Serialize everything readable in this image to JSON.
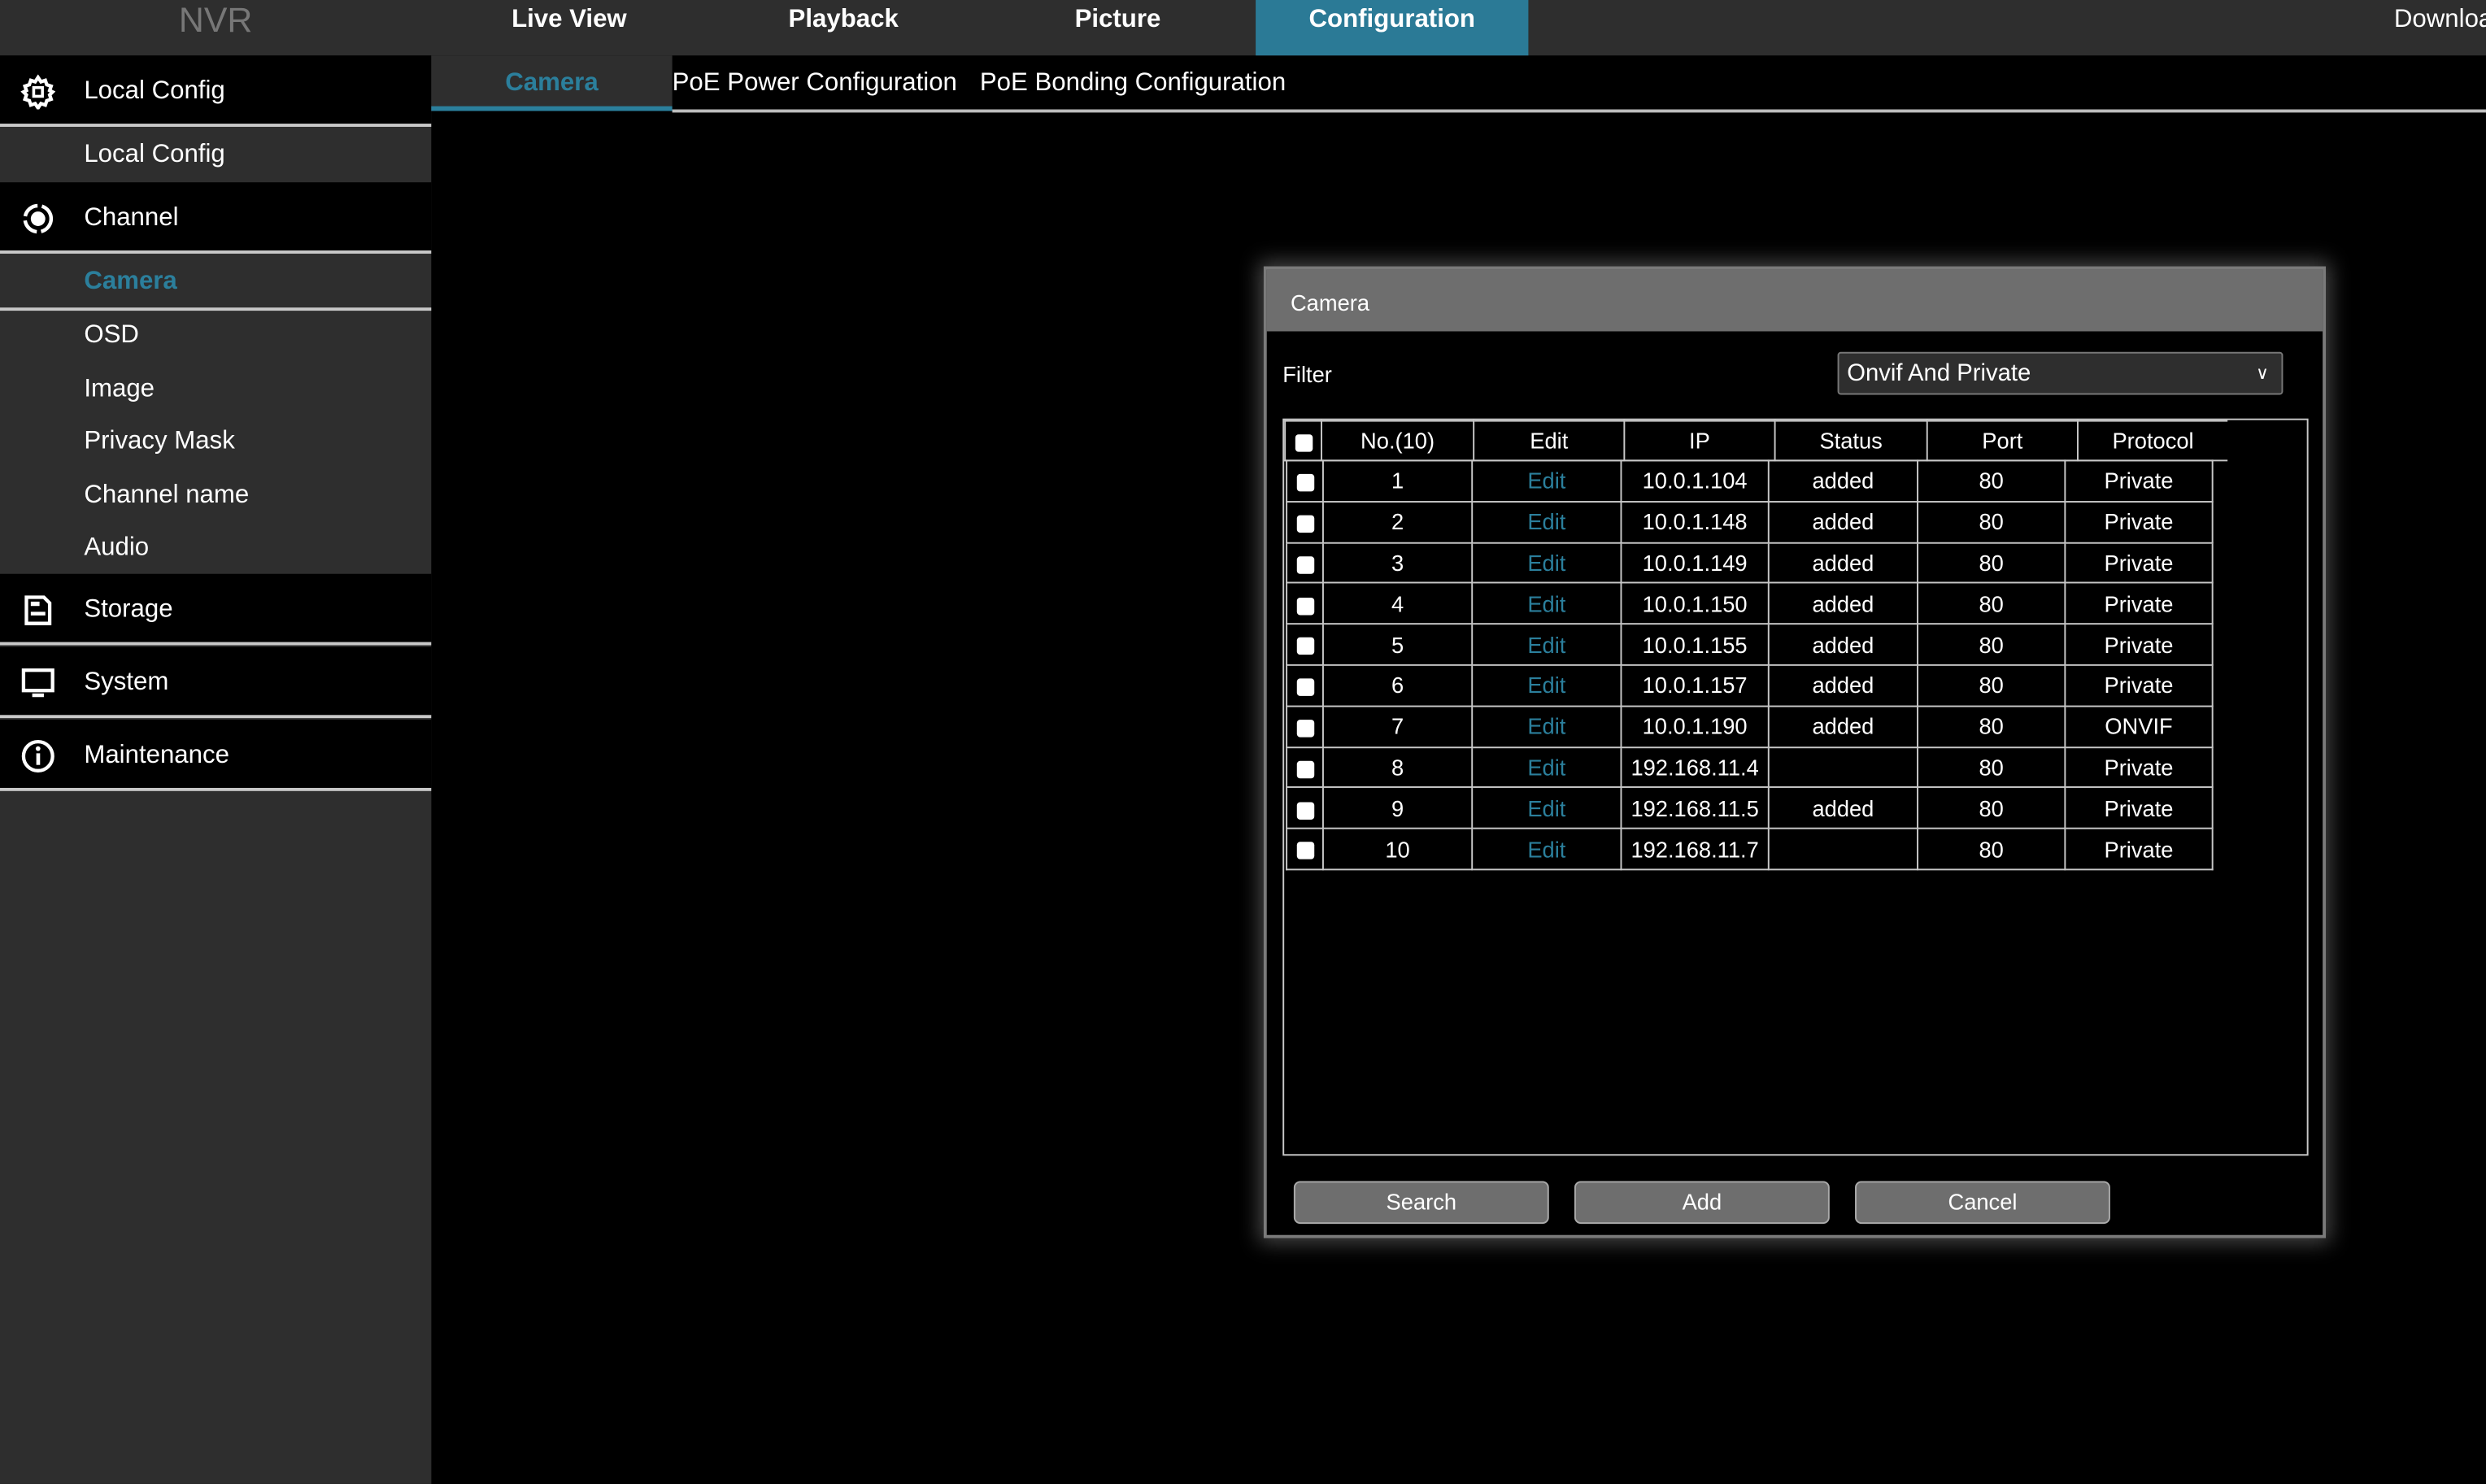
{
  "app": {
    "logo": "NVR"
  },
  "nav": {
    "items": [
      {
        "label": "Live View"
      },
      {
        "label": "Playback"
      },
      {
        "label": "Picture"
      },
      {
        "label": "Configuration",
        "active": true
      }
    ],
    "download": "Downloa"
  },
  "sidebar": {
    "local_config": {
      "label": "Local Config",
      "icon": "gear-icon",
      "items": [
        "Local Config"
      ]
    },
    "channel": {
      "label": "Channel",
      "icon": "camera-lens-icon",
      "items": [
        "Camera",
        "OSD",
        "Image",
        "Privacy Mask",
        "Channel name",
        "Audio"
      ],
      "active": "Camera"
    },
    "storage": {
      "label": "Storage",
      "icon": "storage-icon"
    },
    "system": {
      "label": "System",
      "icon": "monitor-icon"
    },
    "maintenance": {
      "label": "Maintenance",
      "icon": "info-icon"
    }
  },
  "subtabs": [
    "Camera",
    "PoE Power Configuration",
    "PoE Bonding Configuration"
  ],
  "dialog": {
    "title": "Camera",
    "filter_label": "Filter",
    "filter_value": "Onvif And Private",
    "columns": [
      "No.(10)",
      "Edit",
      "IP",
      "Status",
      "Port",
      "Protocol"
    ],
    "rows": [
      {
        "no": "1",
        "edit": "Edit",
        "ip": "10.0.1.104",
        "status": "added",
        "port": "80",
        "protocol": "Private"
      },
      {
        "no": "2",
        "edit": "Edit",
        "ip": "10.0.1.148",
        "status": "added",
        "port": "80",
        "protocol": "Private"
      },
      {
        "no": "3",
        "edit": "Edit",
        "ip": "10.0.1.149",
        "status": "added",
        "port": "80",
        "protocol": "Private"
      },
      {
        "no": "4",
        "edit": "Edit",
        "ip": "10.0.1.150",
        "status": "added",
        "port": "80",
        "protocol": "Private"
      },
      {
        "no": "5",
        "edit": "Edit",
        "ip": "10.0.1.155",
        "status": "added",
        "port": "80",
        "protocol": "Private"
      },
      {
        "no": "6",
        "edit": "Edit",
        "ip": "10.0.1.157",
        "status": "added",
        "port": "80",
        "protocol": "Private"
      },
      {
        "no": "7",
        "edit": "Edit",
        "ip": "10.0.1.190",
        "status": "added",
        "port": "80",
        "protocol": "ONVIF"
      },
      {
        "no": "8",
        "edit": "Edit",
        "ip": "192.168.11.4",
        "status": "",
        "port": "80",
        "protocol": "Private"
      },
      {
        "no": "9",
        "edit": "Edit",
        "ip": "192.168.11.5",
        "status": "added",
        "port": "80",
        "protocol": "Private"
      },
      {
        "no": "10",
        "edit": "Edit",
        "ip": "192.168.11.7",
        "status": "",
        "port": "80",
        "protocol": "Private"
      }
    ],
    "buttons": {
      "search": "Search",
      "add": "Add",
      "cancel": "Cancel"
    }
  },
  "colors": {
    "accent": "#2b7f9c",
    "panel": "#2e2e2e",
    "dialog_header": "#6e6e6e"
  }
}
